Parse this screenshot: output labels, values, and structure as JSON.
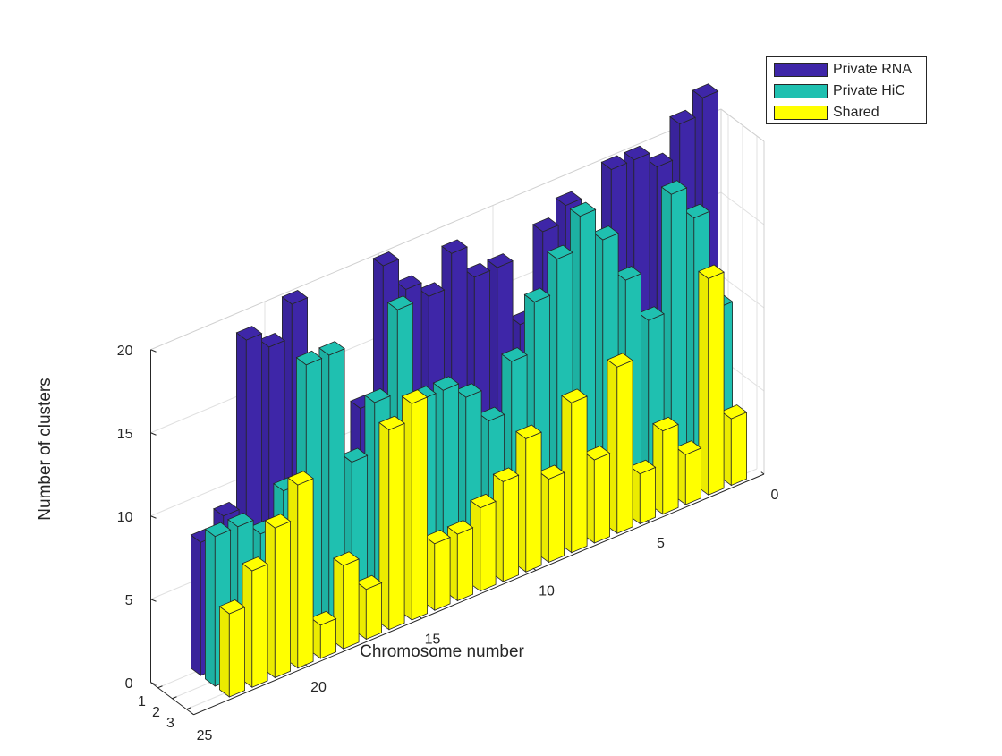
{
  "chart_data": {
    "type": "bar3",
    "xlabel": "Chromosome number",
    "ylabel": "Number of clusters",
    "zlabel": "",
    "categories": [
      1,
      2,
      3,
      4,
      5,
      6,
      7,
      8,
      9,
      10,
      11,
      12,
      13,
      14,
      15,
      16,
      17,
      18,
      19,
      20,
      21,
      22,
      23
    ],
    "x_ticks": [
      "0",
      "5",
      "10",
      "15",
      "20",
      "25"
    ],
    "y_ticks": [
      "1",
      "2",
      "3"
    ],
    "z_ticks": [
      "0",
      "5",
      "10",
      "15",
      "20"
    ],
    "zlim": [
      0,
      20
    ],
    "grid": true,
    "legend_position": "top-right",
    "series": [
      {
        "name": "Private RNA",
        "color": "#3E26A8",
        "values": [
          22,
          21,
          19,
          20,
          20,
          13,
          19,
          18,
          13,
          17,
          17,
          19,
          17,
          18,
          20,
          12,
          8,
          10,
          20,
          18,
          19,
          9,
          8
        ]
      },
      {
        "name": "Private HiC",
        "color": "#1FC0B0",
        "values": [
          10,
          16,
          18,
          11,
          14,
          17,
          19,
          17,
          15,
          12,
          9,
          11,
          12,
          12,
          18,
          13,
          10,
          17,
          17,
          10,
          8,
          9,
          9
        ]
      },
      {
        "name": "Shared",
        "color": "#FFFF00",
        "values": [
          4,
          13,
          3,
          5,
          3,
          10,
          5,
          9,
          5,
          8,
          6,
          5,
          4,
          4,
          13,
          12,
          3,
          5,
          2,
          11,
          9,
          7,
          5
        ]
      }
    ]
  }
}
